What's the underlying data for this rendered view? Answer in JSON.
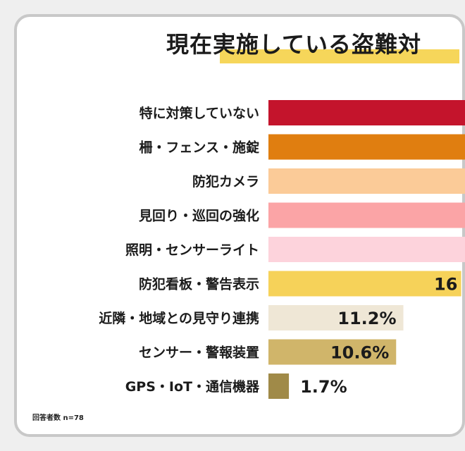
{
  "chart_data": {
    "type": "bar",
    "orientation": "horizontal",
    "title": "現在実施している盗難対",
    "categories": [
      "特に対策していない",
      "柵・フェンス・施錠",
      "防犯カメラ",
      "見回り・巡回の強化",
      "照明・センサーライト",
      "防犯看板・警告表示",
      "近隣・地域との見守り連携",
      "センサー・警報装置",
      "GPS・IoT・通信機器"
    ],
    "values": [
      null,
      null,
      null,
      null,
      null,
      16,
      11.2,
      10.6,
      1.7
    ],
    "value_labels": [
      "",
      "",
      "",
      "",
      "",
      "16",
      "11.2%",
      "10.6%",
      "1.7%"
    ],
    "bar_colors": [
      "#c4142c",
      "#e07e10",
      "#fbcb98",
      "#fba4a6",
      "#fdd3dc",
      "#f6d259",
      "#efe7d6",
      "#d0b56a",
      "#a08a48"
    ],
    "note": "回答者数 n=78"
  }
}
